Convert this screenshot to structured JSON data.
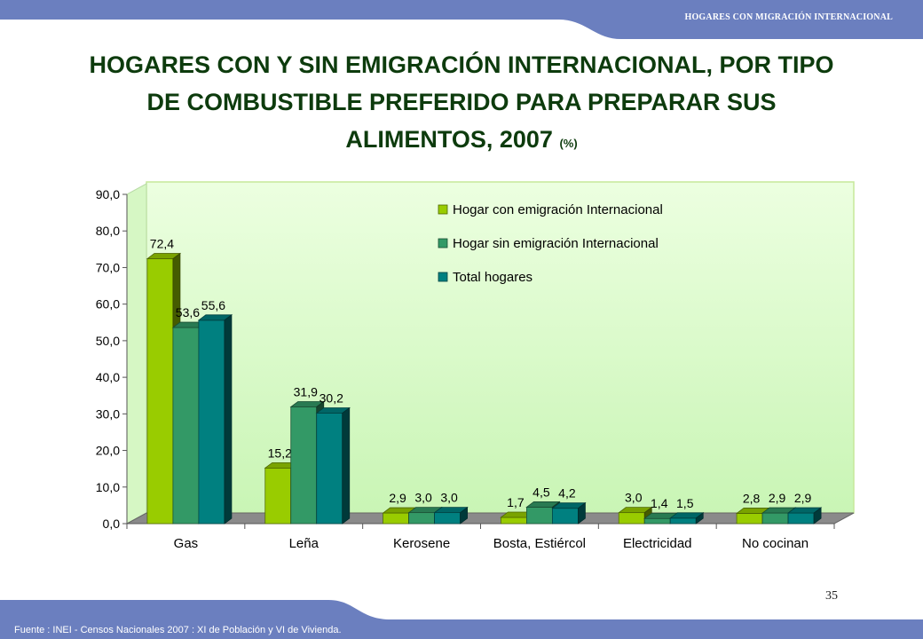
{
  "header": {
    "text": "HOGARES CON MIGRACIÓN INTERNACIONAL"
  },
  "title": {
    "line1": "HOGARES CON Y SIN  EMIGRACIÓN INTERNACIONAL, POR TIPO",
    "line2": "DE COMBUSTIBLE PREFERIDO PARA PREPARAR SUS",
    "line3": "ALIMENTOS,  2007",
    "unit": "(%)"
  },
  "footer": {
    "source": "Fuente : INEI - Censos Nacionales 2007 : XI de Población y VI de Vivienda.",
    "page_number": "35"
  },
  "colors": {
    "band": "#6b7fbf",
    "band_dark": "#4a5e9e",
    "plot_bg_top": "#ecffe0",
    "plot_bg_bottom": "#c9f5b5",
    "plot_border": "#c6e89a",
    "floor": "#8a8a8a"
  },
  "chart_data": {
    "type": "bar",
    "categories": [
      "Gas",
      "Leña",
      "Kerosene",
      "Bosta, Estiércol",
      "Electricidad",
      "No cocinan"
    ],
    "series": [
      {
        "name": "Hogar con emigración Internacional",
        "values": [
          72.4,
          15.2,
          2.9,
          1.7,
          3.0,
          2.8
        ],
        "labels": [
          "72,4",
          "15,2",
          "2,9",
          "1,7",
          "3,0",
          "2,8"
        ],
        "color": "#99cc00"
      },
      {
        "name": "Hogar sin emigración Internacional",
        "values": [
          53.6,
          31.9,
          3.0,
          4.5,
          1.4,
          2.9
        ],
        "labels": [
          "53,6",
          "31,9",
          "3,0",
          "4,5",
          "1,4",
          "2,9"
        ],
        "color": "#339966"
      },
      {
        "name": "Total hogares",
        "values": [
          55.6,
          30.2,
          3.0,
          4.2,
          1.5,
          2.9
        ],
        "labels": [
          "55,6",
          "30,2",
          "3,0",
          "4,2",
          "1,5",
          "2,9"
        ],
        "color": "#008080"
      }
    ],
    "yticks": [
      "0,0",
      "10,0",
      "20,0",
      "30,0",
      "40,0",
      "50,0",
      "60,0",
      "70,0",
      "80,0",
      "90,0"
    ],
    "ylim": [
      0,
      90
    ],
    "legend_position": "top-right",
    "grid": false,
    "style": "3d-bar"
  }
}
